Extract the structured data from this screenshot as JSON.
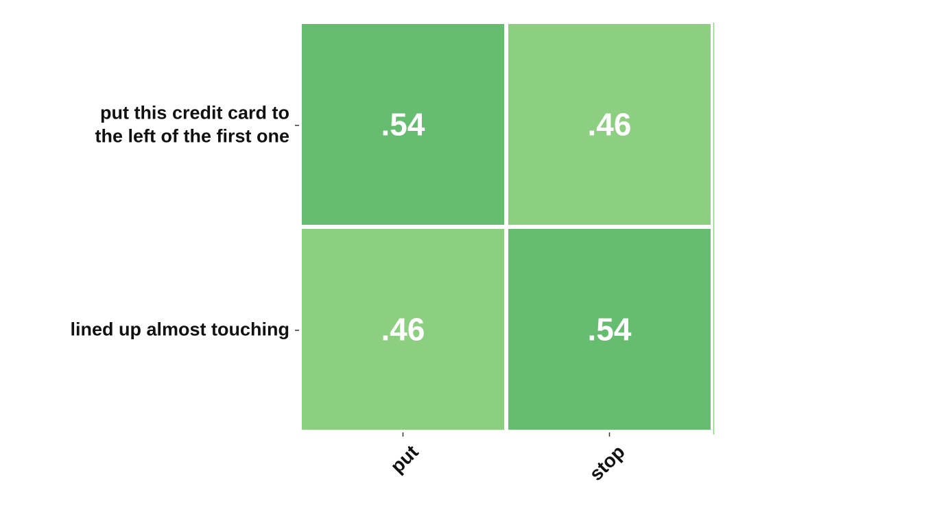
{
  "chart_data": {
    "type": "heatmap",
    "title": "",
    "xlabel": "",
    "ylabel": "",
    "rows": [
      [
        "put this credit card to",
        "the left of the first one"
      ],
      [
        "lined up almost touching"
      ]
    ],
    "columns": [
      "put",
      "stop"
    ],
    "values": [
      [
        0.54,
        0.46
      ],
      [
        0.46,
        0.54
      ]
    ],
    "cell_labels": [
      [
        ".54",
        ".46"
      ],
      [
        ".46",
        ".54"
      ]
    ],
    "colors": {
      "high": "#66bd6f",
      "low": "#8dcf80",
      "cell_text": "#ffffff",
      "axis_text": "#111111"
    },
    "grid": false,
    "legend": "none"
  }
}
